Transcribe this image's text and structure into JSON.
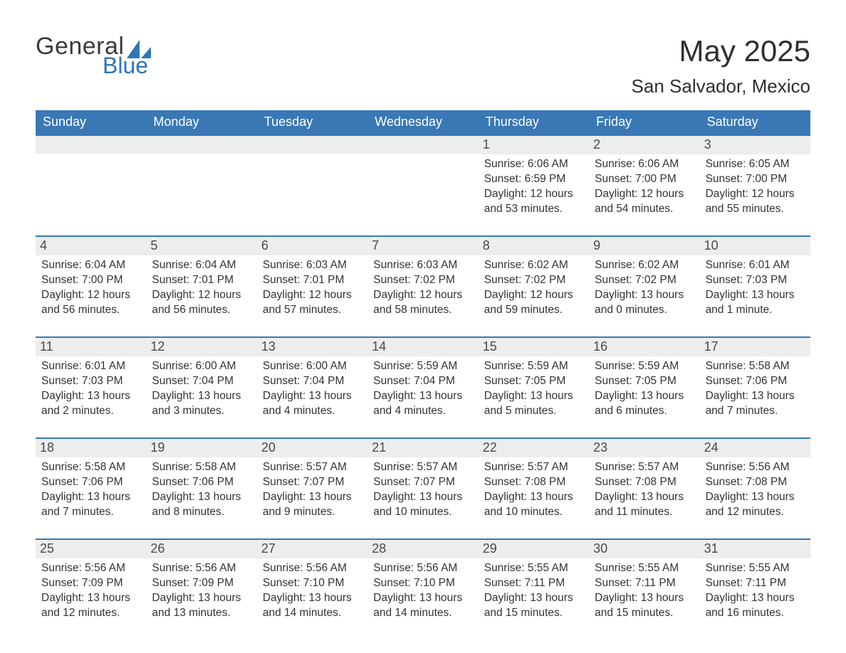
{
  "logo": {
    "word1": "General",
    "word2": "Blue",
    "text_color": "#3a3a3a",
    "accent_color": "#2d76b9"
  },
  "title": "May 2025",
  "location": "San Salvador, Mexico",
  "colors": {
    "header_bg": "#3a78b5",
    "header_text": "#ffffff",
    "row_divider": "#3a78b5",
    "daynum_bg": "#ededed",
    "text": "#333333",
    "page_bg": "#ffffff"
  },
  "grid": {
    "type": "calendar",
    "columns": 7,
    "rows": 5
  },
  "weekdays": [
    "Sunday",
    "Monday",
    "Tuesday",
    "Wednesday",
    "Thursday",
    "Friday",
    "Saturday"
  ],
  "weeks": [
    [
      {
        "blank": true
      },
      {
        "blank": true
      },
      {
        "blank": true
      },
      {
        "blank": true
      },
      {
        "num": "1",
        "sunrise": "Sunrise: 6:06 AM",
        "sunset": "Sunset: 6:59 PM",
        "daylight1": "Daylight: 12 hours",
        "daylight2": "and 53 minutes."
      },
      {
        "num": "2",
        "sunrise": "Sunrise: 6:06 AM",
        "sunset": "Sunset: 7:00 PM",
        "daylight1": "Daylight: 12 hours",
        "daylight2": "and 54 minutes."
      },
      {
        "num": "3",
        "sunrise": "Sunrise: 6:05 AM",
        "sunset": "Sunset: 7:00 PM",
        "daylight1": "Daylight: 12 hours",
        "daylight2": "and 55 minutes."
      }
    ],
    [
      {
        "num": "4",
        "sunrise": "Sunrise: 6:04 AM",
        "sunset": "Sunset: 7:00 PM",
        "daylight1": "Daylight: 12 hours",
        "daylight2": "and 56 minutes."
      },
      {
        "num": "5",
        "sunrise": "Sunrise: 6:04 AM",
        "sunset": "Sunset: 7:01 PM",
        "daylight1": "Daylight: 12 hours",
        "daylight2": "and 56 minutes."
      },
      {
        "num": "6",
        "sunrise": "Sunrise: 6:03 AM",
        "sunset": "Sunset: 7:01 PM",
        "daylight1": "Daylight: 12 hours",
        "daylight2": "and 57 minutes."
      },
      {
        "num": "7",
        "sunrise": "Sunrise: 6:03 AM",
        "sunset": "Sunset: 7:02 PM",
        "daylight1": "Daylight: 12 hours",
        "daylight2": "and 58 minutes."
      },
      {
        "num": "8",
        "sunrise": "Sunrise: 6:02 AM",
        "sunset": "Sunset: 7:02 PM",
        "daylight1": "Daylight: 12 hours",
        "daylight2": "and 59 minutes."
      },
      {
        "num": "9",
        "sunrise": "Sunrise: 6:02 AM",
        "sunset": "Sunset: 7:02 PM",
        "daylight1": "Daylight: 13 hours",
        "daylight2": "and 0 minutes."
      },
      {
        "num": "10",
        "sunrise": "Sunrise: 6:01 AM",
        "sunset": "Sunset: 7:03 PM",
        "daylight1": "Daylight: 13 hours",
        "daylight2": "and 1 minute."
      }
    ],
    [
      {
        "num": "11",
        "sunrise": "Sunrise: 6:01 AM",
        "sunset": "Sunset: 7:03 PM",
        "daylight1": "Daylight: 13 hours",
        "daylight2": "and 2 minutes."
      },
      {
        "num": "12",
        "sunrise": "Sunrise: 6:00 AM",
        "sunset": "Sunset: 7:04 PM",
        "daylight1": "Daylight: 13 hours",
        "daylight2": "and 3 minutes."
      },
      {
        "num": "13",
        "sunrise": "Sunrise: 6:00 AM",
        "sunset": "Sunset: 7:04 PM",
        "daylight1": "Daylight: 13 hours",
        "daylight2": "and 4 minutes."
      },
      {
        "num": "14",
        "sunrise": "Sunrise: 5:59 AM",
        "sunset": "Sunset: 7:04 PM",
        "daylight1": "Daylight: 13 hours",
        "daylight2": "and 4 minutes."
      },
      {
        "num": "15",
        "sunrise": "Sunrise: 5:59 AM",
        "sunset": "Sunset: 7:05 PM",
        "daylight1": "Daylight: 13 hours",
        "daylight2": "and 5 minutes."
      },
      {
        "num": "16",
        "sunrise": "Sunrise: 5:59 AM",
        "sunset": "Sunset: 7:05 PM",
        "daylight1": "Daylight: 13 hours",
        "daylight2": "and 6 minutes."
      },
      {
        "num": "17",
        "sunrise": "Sunrise: 5:58 AM",
        "sunset": "Sunset: 7:06 PM",
        "daylight1": "Daylight: 13 hours",
        "daylight2": "and 7 minutes."
      }
    ],
    [
      {
        "num": "18",
        "sunrise": "Sunrise: 5:58 AM",
        "sunset": "Sunset: 7:06 PM",
        "daylight1": "Daylight: 13 hours",
        "daylight2": "and 7 minutes."
      },
      {
        "num": "19",
        "sunrise": "Sunrise: 5:58 AM",
        "sunset": "Sunset: 7:06 PM",
        "daylight1": "Daylight: 13 hours",
        "daylight2": "and 8 minutes."
      },
      {
        "num": "20",
        "sunrise": "Sunrise: 5:57 AM",
        "sunset": "Sunset: 7:07 PM",
        "daylight1": "Daylight: 13 hours",
        "daylight2": "and 9 minutes."
      },
      {
        "num": "21",
        "sunrise": "Sunrise: 5:57 AM",
        "sunset": "Sunset: 7:07 PM",
        "daylight1": "Daylight: 13 hours",
        "daylight2": "and 10 minutes."
      },
      {
        "num": "22",
        "sunrise": "Sunrise: 5:57 AM",
        "sunset": "Sunset: 7:08 PM",
        "daylight1": "Daylight: 13 hours",
        "daylight2": "and 10 minutes."
      },
      {
        "num": "23",
        "sunrise": "Sunrise: 5:57 AM",
        "sunset": "Sunset: 7:08 PM",
        "daylight1": "Daylight: 13 hours",
        "daylight2": "and 11 minutes."
      },
      {
        "num": "24",
        "sunrise": "Sunrise: 5:56 AM",
        "sunset": "Sunset: 7:08 PM",
        "daylight1": "Daylight: 13 hours",
        "daylight2": "and 12 minutes."
      }
    ],
    [
      {
        "num": "25",
        "sunrise": "Sunrise: 5:56 AM",
        "sunset": "Sunset: 7:09 PM",
        "daylight1": "Daylight: 13 hours",
        "daylight2": "and 12 minutes."
      },
      {
        "num": "26",
        "sunrise": "Sunrise: 5:56 AM",
        "sunset": "Sunset: 7:09 PM",
        "daylight1": "Daylight: 13 hours",
        "daylight2": "and 13 minutes."
      },
      {
        "num": "27",
        "sunrise": "Sunrise: 5:56 AM",
        "sunset": "Sunset: 7:10 PM",
        "daylight1": "Daylight: 13 hours",
        "daylight2": "and 14 minutes."
      },
      {
        "num": "28",
        "sunrise": "Sunrise: 5:56 AM",
        "sunset": "Sunset: 7:10 PM",
        "daylight1": "Daylight: 13 hours",
        "daylight2": "and 14 minutes."
      },
      {
        "num": "29",
        "sunrise": "Sunrise: 5:55 AM",
        "sunset": "Sunset: 7:11 PM",
        "daylight1": "Daylight: 13 hours",
        "daylight2": "and 15 minutes."
      },
      {
        "num": "30",
        "sunrise": "Sunrise: 5:55 AM",
        "sunset": "Sunset: 7:11 PM",
        "daylight1": "Daylight: 13 hours",
        "daylight2": "and 15 minutes."
      },
      {
        "num": "31",
        "sunrise": "Sunrise: 5:55 AM",
        "sunset": "Sunset: 7:11 PM",
        "daylight1": "Daylight: 13 hours",
        "daylight2": "and 16 minutes."
      }
    ]
  ]
}
